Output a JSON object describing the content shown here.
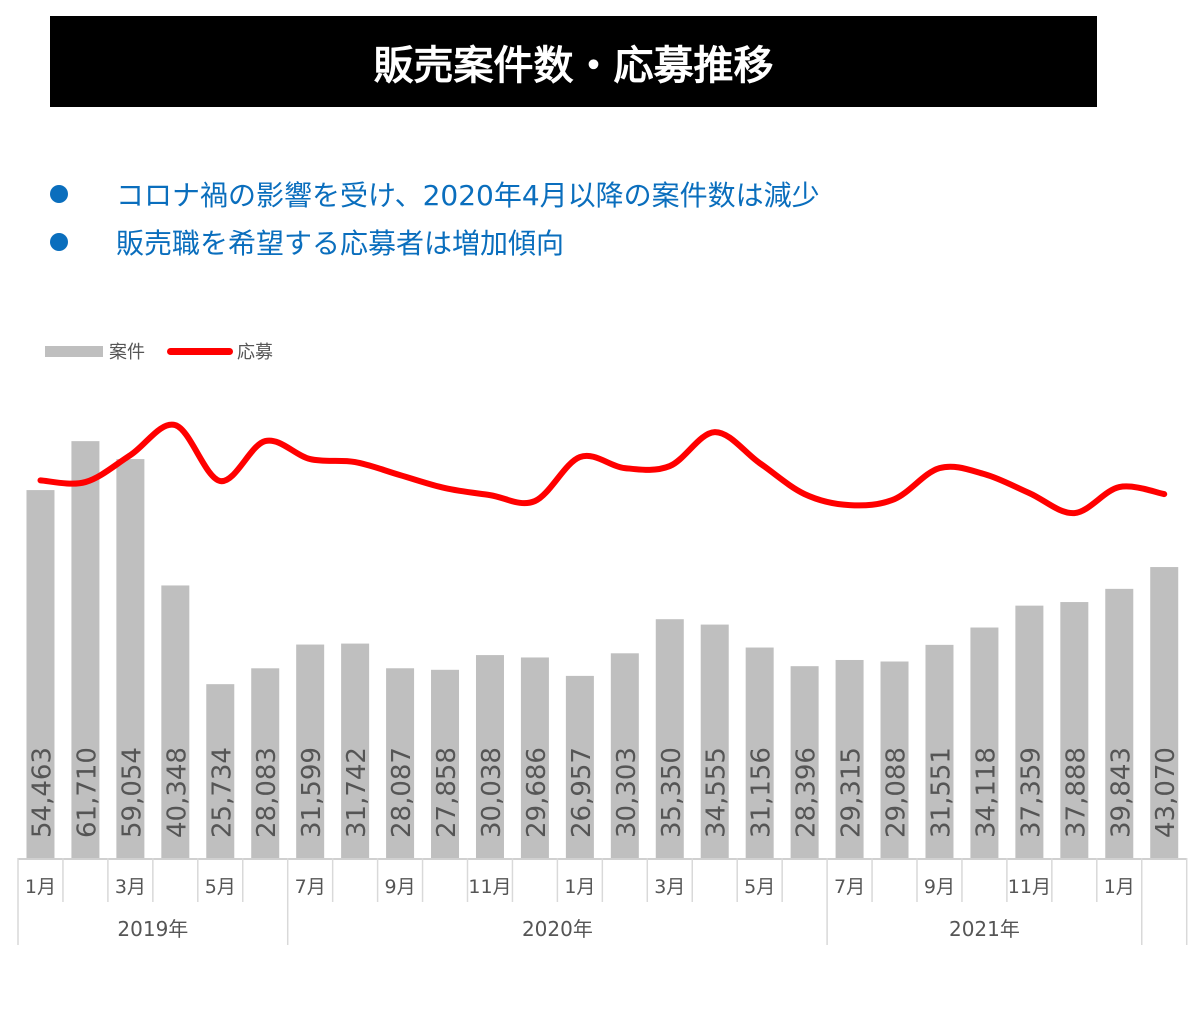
{
  "title": "販売案件数・応募推移",
  "bullets": [
    "コロナ禍の影響を受け、2020年4月以降の案件数は減少",
    "販売職を希望する応募者は増加傾向"
  ],
  "colors": {
    "bar": "#bfbfbf",
    "line": "#ff0000",
    "bullet_text": "#0a6ebd",
    "title_bg": "#000000"
  },
  "chart_data": {
    "type": "bar+line",
    "title": "",
    "legend": [
      "案件",
      "応募"
    ],
    "legend_position": "top-left",
    "grid": false,
    "ylim": [
      0,
      67800
    ],
    "month_labels": [
      "1月",
      "",
      "3月",
      "",
      "5月",
      "",
      "7月",
      "",
      "9月",
      "",
      "11月",
      "",
      "1月",
      "",
      "3月",
      "",
      "5月",
      "",
      "7月",
      "",
      "9月",
      "",
      "11月",
      "",
      "1月",
      ""
    ],
    "year_groups": [
      {
        "label": "2019年",
        "span": 6
      },
      {
        "label": "2020年",
        "span": 12
      },
      {
        "label": "2021年",
        "span": 7
      },
      {
        "label": "",
        "span": 1
      }
    ],
    "series": [
      {
        "name": "案件",
        "type": "bar",
        "values": [
          54463,
          61710,
          59054,
          40348,
          25734,
          28083,
          31599,
          31742,
          28087,
          27858,
          30038,
          29686,
          26957,
          30303,
          35350,
          34555,
          31156,
          28396,
          29315,
          29088,
          31551,
          34118,
          37359,
          37888,
          39843,
          43070
        ],
        "labels": [
          "54,463",
          "61,710",
          "59,054",
          "40,348",
          "25,734",
          "28,083",
          "31,599",
          "31,742",
          "28,087",
          "27,858",
          "30,038",
          "29,686",
          "26,957",
          "30,303",
          "35,350",
          "34,555",
          "31,156",
          "28,396",
          "29,315",
          "29,088",
          "31,551",
          "34,118",
          "37,359",
          "37,888",
          "39,843",
          "43,070"
        ]
      },
      {
        "name": "応募",
        "type": "line",
        "smooth": true,
        "values": [
          55900,
          55650,
          59640,
          64080,
          55800,
          61720,
          59050,
          58610,
          56680,
          54760,
          53720,
          52840,
          59350,
          57720,
          58020,
          63050,
          58460,
          53870,
          52240,
          53130,
          57720,
          56830,
          54020,
          51060,
          54910,
          53870
        ]
      }
    ]
  }
}
